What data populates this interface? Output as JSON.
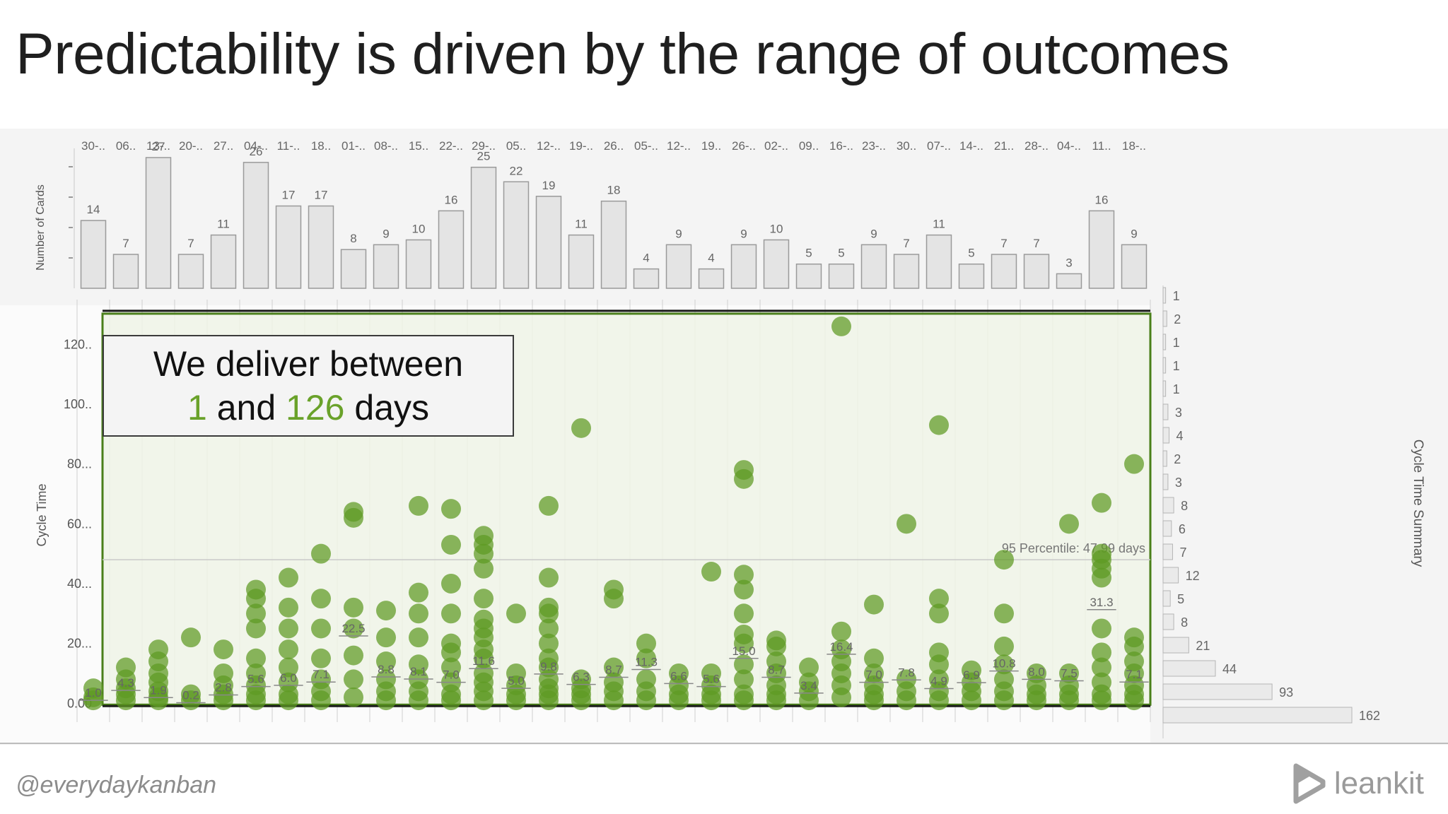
{
  "slide": {
    "title": "Predictability is driven by the range of outcomes",
    "footer_handle": "@everydaykanban",
    "brand_name": "leankit",
    "brand_icon": "leankit-logo-icon"
  },
  "callout": {
    "line1": "We deliver between",
    "min": "1",
    "and_text": "and",
    "max": "126",
    "days_text": "days"
  },
  "colors": {
    "dot": "#5e9a22",
    "highlight": "#6aa22a",
    "bar_fill": "#e4e4e4",
    "bar_stroke": "#9a9a9a",
    "box_stroke": "#4a7f1a"
  },
  "chart_data": [
    {
      "type": "bar",
      "ylabel": "Number of Cards",
      "categories": [
        "30-..",
        "06..",
        "13-..",
        "20-..",
        "27..",
        "04-..",
        "11-..",
        "18..",
        "01-..",
        "08-..",
        "15..",
        "22-..",
        "29-..",
        "05..",
        "12-..",
        "19-..",
        "26..",
        "05-..",
        "12-..",
        "19..",
        "26-..",
        "02-..",
        "09..",
        "16-..",
        "23-..",
        "30..",
        "07-..",
        "14-..",
        "21..",
        "28-..",
        "04-..",
        "11..",
        "18-.."
      ],
      "values": [
        14,
        7,
        27,
        7,
        11,
        26,
        17,
        17,
        8,
        9,
        10,
        16,
        25,
        22,
        19,
        11,
        18,
        4,
        9,
        4,
        9,
        10,
        5,
        5,
        9,
        7,
        11,
        5,
        7,
        7,
        3,
        16,
        9
      ]
    },
    {
      "type": "scatter",
      "ylabel": "Cycle Time",
      "ylim": [
        -3,
        130
      ],
      "yticks": [
        "0.00",
        "20...",
        "40...",
        "60...",
        "80...",
        "100..",
        "120.."
      ],
      "ytick_values": [
        0,
        20,
        40,
        60,
        80,
        100,
        120
      ],
      "percentile_label": "95 Percentile: 47.99 days",
      "percentile_value": 47.99,
      "range_min": 1,
      "range_max": 126,
      "medians": [
        "1.0",
        "4.3",
        "1.9",
        "0.2",
        "2.8",
        "5.6",
        "6.0",
        "7.1",
        "22.5",
        "8.8",
        "8.1",
        "7.0",
        "11.6",
        "5.0",
        "9.8",
        "6.3",
        "8.7",
        "11.3",
        "6.6",
        "5.6",
        "15.0",
        "8.7",
        "3.4",
        "16.4",
        "7.0",
        "7.8",
        "4.9",
        "6.9",
        "10.8",
        "8.0",
        "7.5",
        "31.3",
        "7.1"
      ],
      "median_values": [
        1.0,
        4.3,
        1.9,
        0.2,
        2.8,
        5.6,
        6.0,
        7.1,
        22.5,
        8.8,
        8.1,
        7.0,
        11.6,
        5.0,
        9.8,
        6.3,
        8.7,
        11.3,
        6.6,
        5.6,
        15.0,
        8.7,
        3.4,
        16.4,
        7.0,
        7.8,
        4.9,
        6.9,
        10.8,
        8.0,
        7.5,
        31.3,
        7.1
      ],
      "points": [
        [
          1,
          2,
          5
        ],
        [
          1,
          3,
          5,
          8,
          12
        ],
        [
          1,
          2,
          4,
          7,
          10,
          14,
          18
        ],
        [
          1,
          3,
          22
        ],
        [
          1,
          3,
          6,
          10,
          18
        ],
        [
          1,
          3,
          6,
          10,
          15,
          25,
          30,
          35,
          38
        ],
        [
          1,
          3,
          7,
          12,
          18,
          25,
          32,
          42
        ],
        [
          1,
          4,
          8,
          15,
          25,
          35,
          50
        ],
        [
          2,
          8,
          16,
          25,
          32,
          62,
          64
        ],
        [
          1,
          4,
          8,
          14,
          22,
          31
        ],
        [
          1,
          4,
          8,
          13,
          22,
          30,
          37,
          66
        ],
        [
          1,
          3,
          7,
          12,
          17,
          20,
          30,
          40,
          53,
          65
        ],
        [
          1,
          4,
          7,
          10,
          15,
          18,
          22,
          25,
          28,
          35,
          45,
          50,
          53,
          56
        ],
        [
          1,
          3,
          6,
          10,
          30
        ],
        [
          1,
          3,
          5,
          8,
          12,
          15,
          20,
          25,
          30,
          32,
          42,
          66
        ],
        [
          1,
          3,
          5,
          8,
          92
        ],
        [
          1,
          4,
          7,
          12,
          35,
          38
        ],
        [
          1,
          4,
          8,
          15,
          20
        ],
        [
          1,
          3,
          6,
          10
        ],
        [
          1,
          3,
          6,
          10,
          44
        ],
        [
          1,
          3,
          8,
          13,
          20,
          23,
          30,
          38,
          43,
          75,
          78
        ],
        [
          1,
          3,
          6,
          10,
          14,
          19,
          21
        ],
        [
          1,
          4,
          7,
          12
        ],
        [
          2,
          6,
          10,
          14,
          18,
          24,
          126
        ],
        [
          1,
          3,
          6,
          10,
          15,
          33
        ],
        [
          1,
          4,
          8,
          60
        ],
        [
          1,
          4,
          8,
          13,
          17,
          30,
          35,
          93
        ],
        [
          1,
          4,
          7,
          11
        ],
        [
          1,
          4,
          8,
          13,
          19,
          30,
          48
        ],
        [
          1,
          3,
          6,
          10
        ],
        [
          1,
          3,
          6,
          10,
          60
        ],
        [
          1,
          3,
          7,
          12,
          17,
          25,
          42,
          45,
          48,
          50,
          67
        ],
        [
          1,
          3,
          6,
          10,
          14,
          19,
          22,
          80
        ]
      ]
    },
    {
      "type": "bar",
      "ylabel": "Cycle Time Summary",
      "orientation": "horizontal",
      "values": [
        1,
        2,
        1,
        1,
        1,
        3,
        4,
        2,
        3,
        8,
        6,
        7,
        12,
        5,
        8,
        21,
        44,
        93,
        162
      ]
    }
  ]
}
